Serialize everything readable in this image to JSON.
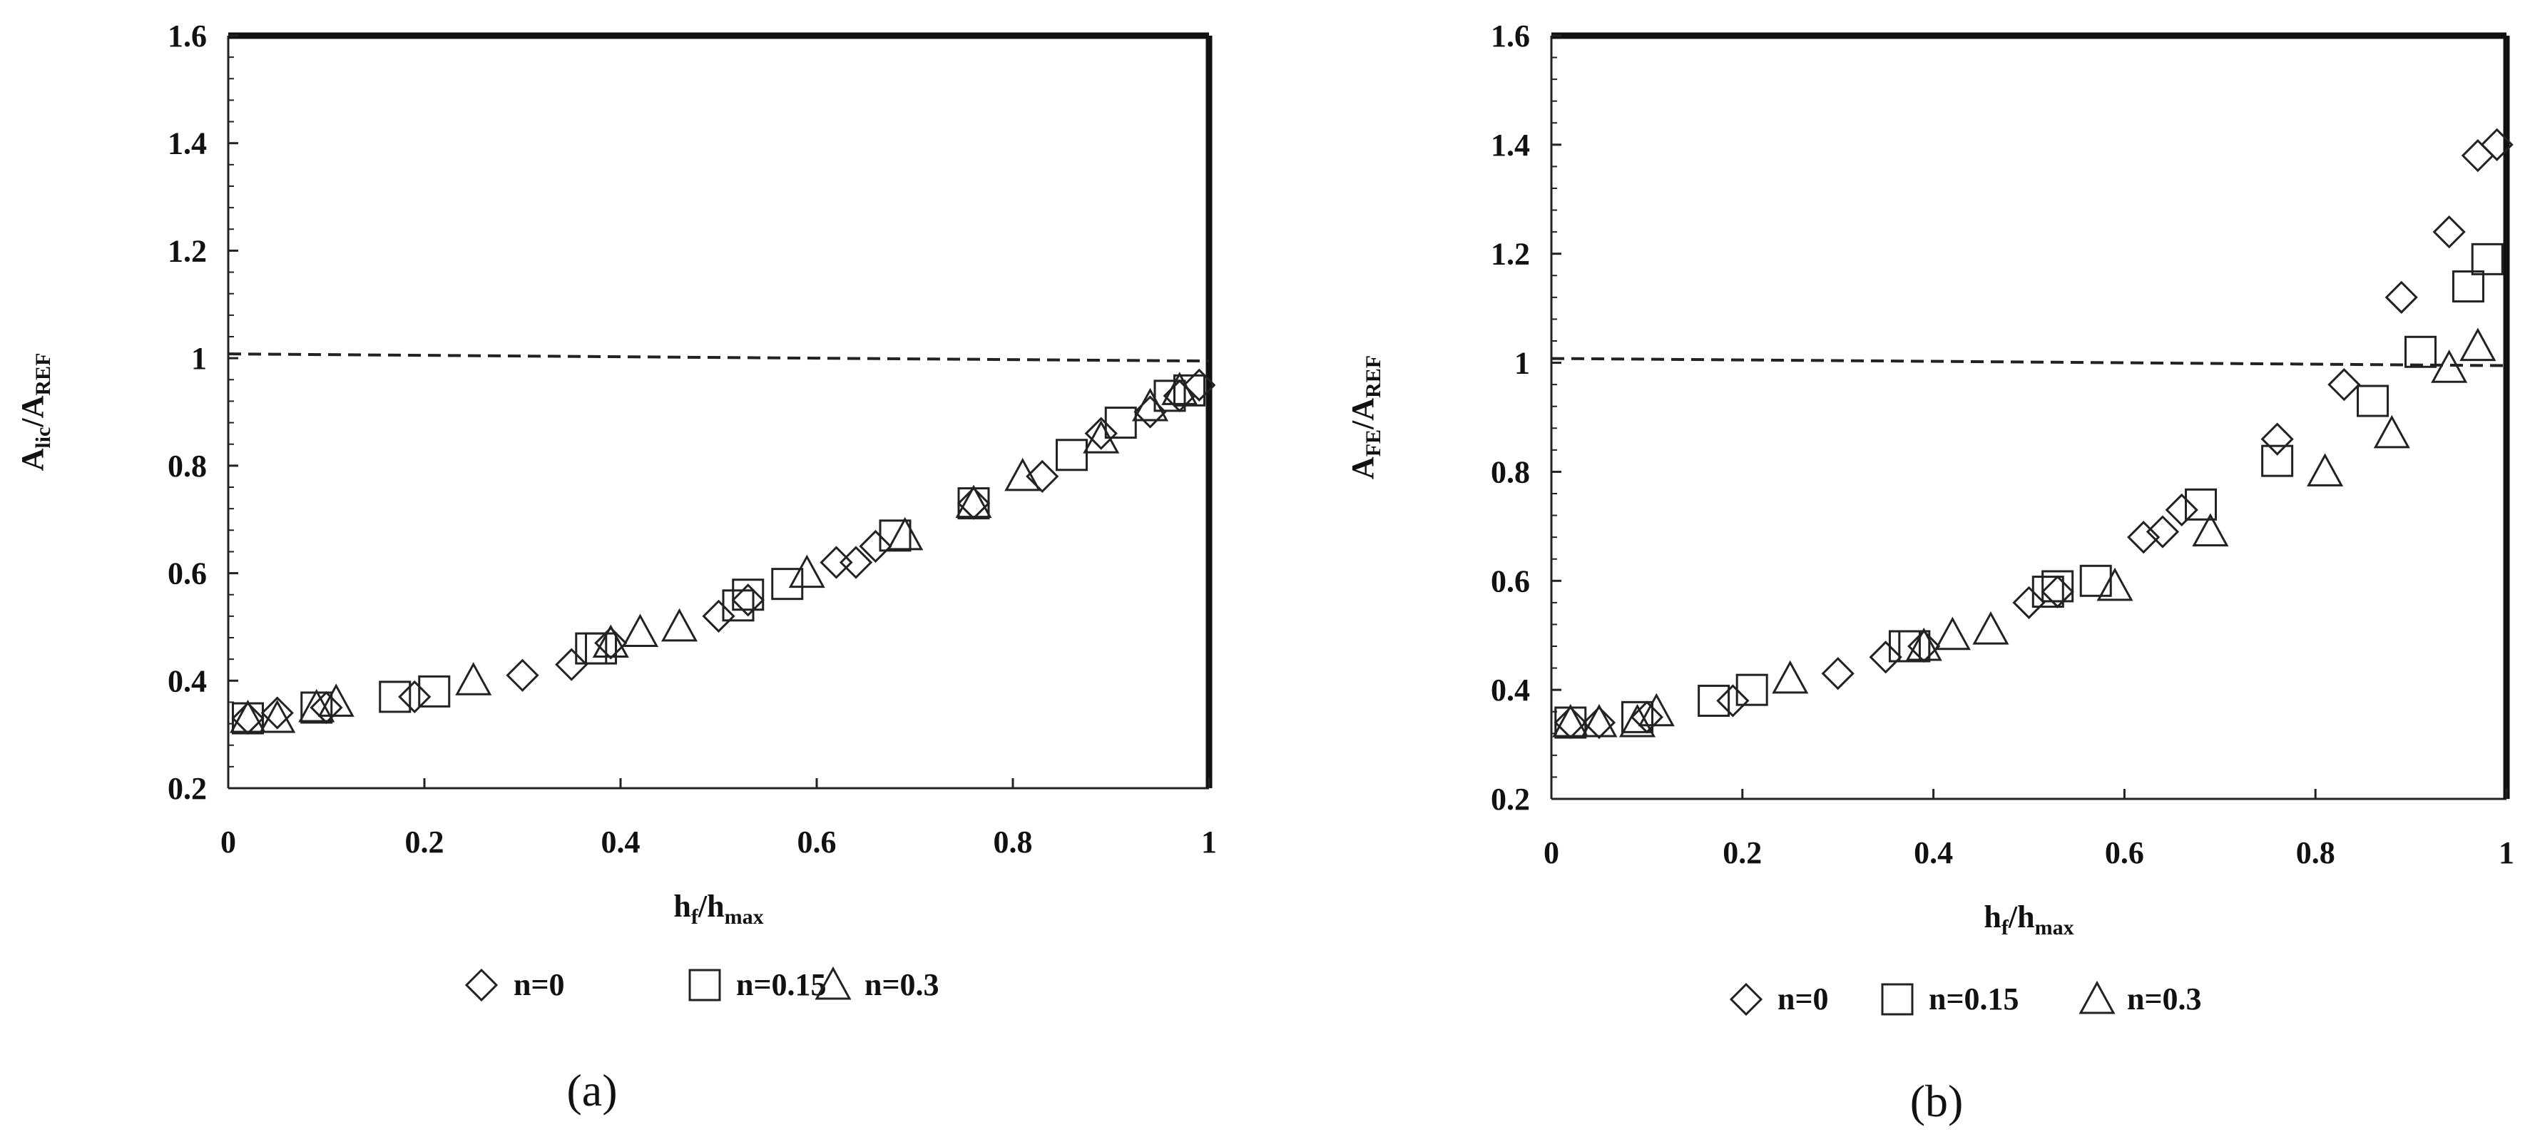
{
  "chart_data": [
    {
      "type": "scatter",
      "caption": "(a)",
      "xlabel": {
        "main": "h",
        "sub1": "f",
        "mid": "/h",
        "sub2": "max"
      },
      "ylabel": {
        "main": "A",
        "sub1": "lic",
        "mid": "/A",
        "sub2": "REF"
      },
      "xlim": [
        0,
        1
      ],
      "ylim": [
        0.2,
        1.6
      ],
      "xticks": [
        "0",
        "0.2",
        "0.4",
        "0.6",
        "0.8",
        "1"
      ],
      "yticks": [
        "0.2",
        "0.4",
        "0.6",
        "0.8",
        "1",
        "1.2",
        "1.4",
        "1.6"
      ],
      "reference_line": {
        "y": 1.0,
        "style": "dashed"
      },
      "legend": {
        "position": "bottom"
      },
      "series": [
        {
          "name": "n=0",
          "marker": "diamond",
          "x": [
            0.02,
            0.05,
            0.1,
            0.19,
            0.3,
            0.35,
            0.39,
            0.5,
            0.53,
            0.62,
            0.64,
            0.66,
            0.76,
            0.83,
            0.89,
            0.94,
            0.97,
            0.99
          ],
          "y": [
            0.33,
            0.34,
            0.35,
            0.37,
            0.41,
            0.43,
            0.47,
            0.52,
            0.55,
            0.62,
            0.62,
            0.65,
            0.73,
            0.78,
            0.86,
            0.9,
            0.93,
            0.95
          ]
        },
        {
          "name": "n=0.15",
          "marker": "square",
          "x": [
            0.02,
            0.09,
            0.17,
            0.21,
            0.37,
            0.38,
            0.52,
            0.53,
            0.57,
            0.68,
            0.76,
            0.86,
            0.91,
            0.96,
            0.98
          ],
          "y": [
            0.33,
            0.35,
            0.37,
            0.38,
            0.46,
            0.46,
            0.54,
            0.56,
            0.58,
            0.67,
            0.73,
            0.82,
            0.88,
            0.93,
            0.94
          ]
        },
        {
          "name": "n=0.3",
          "marker": "triangle",
          "x": [
            0.02,
            0.05,
            0.09,
            0.11,
            0.25,
            0.39,
            0.42,
            0.46,
            0.59,
            0.69,
            0.76,
            0.81,
            0.89,
            0.94,
            0.97
          ],
          "y": [
            0.33,
            0.33,
            0.35,
            0.36,
            0.4,
            0.47,
            0.49,
            0.5,
            0.6,
            0.67,
            0.73,
            0.78,
            0.85,
            0.91,
            0.94
          ]
        }
      ]
    },
    {
      "type": "scatter",
      "caption": "(b)",
      "xlabel": {
        "main": "h",
        "sub1": "f",
        "mid": "/h",
        "sub2": "max"
      },
      "ylabel": {
        "main": "A",
        "sub1": "FE",
        "mid": "/A",
        "sub2": "REF"
      },
      "xlim": [
        0,
        1
      ],
      "ylim": [
        0.2,
        1.6
      ],
      "xticks": [
        "0",
        "0.2",
        "0.4",
        "0.6",
        "0.8",
        "1"
      ],
      "yticks": [
        "0.2",
        "0.4",
        "0.6",
        "0.8",
        "1",
        "1.2",
        "1.4",
        "1.6"
      ],
      "reference_line": {
        "y": 1.0,
        "style": "dashed"
      },
      "legend": {
        "position": "bottom"
      },
      "series": [
        {
          "name": "n=0",
          "marker": "diamond",
          "x": [
            0.02,
            0.05,
            0.1,
            0.19,
            0.3,
            0.35,
            0.39,
            0.5,
            0.53,
            0.62,
            0.64,
            0.66,
            0.76,
            0.83,
            0.89,
            0.94,
            0.97,
            0.99
          ],
          "y": [
            0.34,
            0.34,
            0.35,
            0.38,
            0.43,
            0.46,
            0.48,
            0.56,
            0.58,
            0.68,
            0.69,
            0.73,
            0.86,
            0.96,
            1.12,
            1.24,
            1.38,
            1.4
          ]
        },
        {
          "name": "n=0.15",
          "marker": "square",
          "x": [
            0.02,
            0.09,
            0.17,
            0.21,
            0.37,
            0.38,
            0.52,
            0.53,
            0.57,
            0.68,
            0.76,
            0.86,
            0.91,
            0.96,
            0.98
          ],
          "y": [
            0.34,
            0.35,
            0.38,
            0.4,
            0.48,
            0.48,
            0.58,
            0.59,
            0.6,
            0.74,
            0.82,
            0.93,
            1.02,
            1.14,
            1.19
          ]
        },
        {
          "name": "n=0.3",
          "marker": "triangle",
          "x": [
            0.02,
            0.05,
            0.09,
            0.11,
            0.25,
            0.39,
            0.42,
            0.46,
            0.59,
            0.69,
            0.81,
            0.88,
            0.94,
            0.97
          ],
          "y": [
            0.34,
            0.34,
            0.34,
            0.36,
            0.42,
            0.48,
            0.5,
            0.51,
            0.59,
            0.69,
            0.8,
            0.87,
            0.99,
            1.03
          ]
        }
      ]
    }
  ]
}
